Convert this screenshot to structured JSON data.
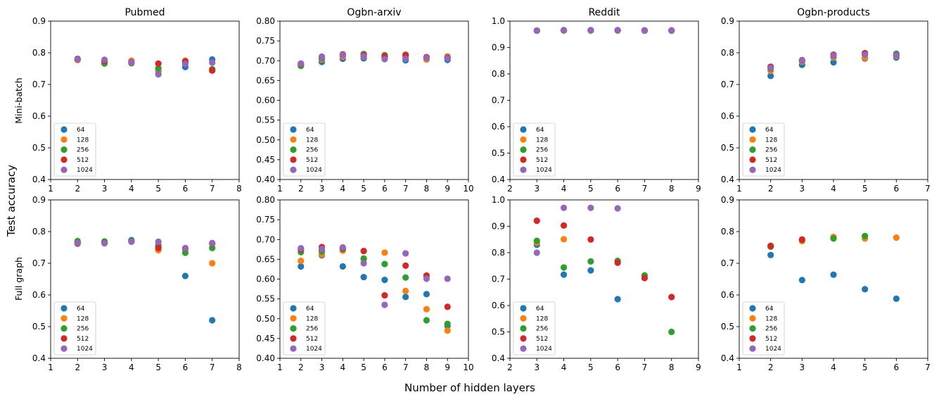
{
  "figure": {
    "ylabel": "Test accuracy",
    "xlabel": "Number of hidden layers",
    "row_labels": [
      "Mini-batch",
      "Full graph"
    ],
    "colors": {
      "64": "#1f77b4",
      "128": "#ff7f0e",
      "256": "#2ca02c",
      "512": "#d62728",
      "1024": "#9467bd"
    },
    "legend_position": "lower-left"
  },
  "chart_data": [
    {
      "type": "scatter",
      "title": "Pubmed",
      "row": "Mini-batch",
      "xlim": [
        1,
        8
      ],
      "xticks": [
        1,
        2,
        3,
        4,
        5,
        6,
        7,
        8
      ],
      "ylim": [
        0.4,
        0.9
      ],
      "yticks": [
        "0.4",
        "0.5",
        "0.6",
        "0.7",
        "0.8",
        "0.9"
      ],
      "x": [
        2,
        3,
        4,
        5,
        6,
        7
      ],
      "series": [
        {
          "name": "64",
          "values": [
            0.781,
            0.776,
            0.768,
            0.742,
            0.755,
            0.779
          ]
        },
        {
          "name": "128",
          "values": [
            0.777,
            0.77,
            0.775,
            0.745,
            0.775,
            0.748
          ]
        },
        {
          "name": "256",
          "values": [
            0.779,
            0.766,
            0.767,
            0.751,
            0.768,
            0.748
          ]
        },
        {
          "name": "512",
          "values": [
            0.78,
            0.774,
            0.771,
            0.766,
            0.773,
            0.744
          ]
        },
        {
          "name": "1024",
          "values": [
            0.779,
            0.778,
            0.77,
            0.732,
            0.765,
            0.769
          ]
        }
      ]
    },
    {
      "type": "scatter",
      "title": "Ogbn-arxiv",
      "row": "Mini-batch",
      "xlim": [
        1,
        10
      ],
      "xticks": [
        1,
        2,
        3,
        4,
        5,
        6,
        7,
        8,
        9,
        10
      ],
      "ylim": [
        0.4,
        0.8
      ],
      "yticks": [
        "0.40",
        "0.45",
        "0.50",
        "0.55",
        "0.60",
        "0.65",
        "0.70",
        "0.75",
        "0.80"
      ],
      "x": [
        2,
        3,
        4,
        5,
        6,
        7,
        8,
        9
      ],
      "series": [
        {
          "name": "64",
          "values": [
            0.69,
            0.697,
            0.705,
            0.706,
            0.705,
            0.701,
            0.707,
            0.702
          ]
        },
        {
          "name": "128",
          "values": [
            0.69,
            0.703,
            0.71,
            0.71,
            0.71,
            0.712,
            0.703,
            0.711
          ]
        },
        {
          "name": "256",
          "values": [
            0.687,
            0.706,
            0.714,
            0.717,
            0.714,
            0.712,
            0.708,
            0.708
          ]
        },
        {
          "name": "512",
          "values": [
            0.692,
            0.71,
            0.716,
            0.714,
            0.711,
            0.715,
            0.709,
            0.707
          ]
        },
        {
          "name": "1024",
          "values": [
            0.693,
            0.709,
            0.714,
            0.711,
            0.704,
            0.705,
            0.707,
            0.706
          ]
        }
      ]
    },
    {
      "type": "scatter",
      "title": "Reddit",
      "row": "Mini-batch",
      "xlim": [
        2,
        9
      ],
      "xticks": [
        2,
        3,
        4,
        5,
        6,
        7,
        8,
        9
      ],
      "ylim": [
        0.4,
        1.0
      ],
      "yticks": [
        "0.4",
        "0.5",
        "0.6",
        "0.7",
        "0.8",
        "0.9",
        "1.0"
      ],
      "x": [
        3,
        4,
        5,
        6,
        7,
        8
      ],
      "series": [
        {
          "name": "64",
          "values": [
            0.964,
            0.965,
            0.965,
            0.965,
            0.964,
            0.964
          ]
        },
        {
          "name": "128",
          "values": [
            0.964,
            0.965,
            0.965,
            0.965,
            0.964,
            0.964
          ]
        },
        {
          "name": "256",
          "values": [
            0.964,
            0.965,
            0.965,
            0.965,
            0.964,
            0.964
          ]
        },
        {
          "name": "512",
          "values": [
            0.964,
            0.965,
            0.965,
            0.965,
            0.965,
            0.965
          ]
        },
        {
          "name": "1024",
          "values": [
            0.964,
            0.966,
            0.966,
            0.966,
            0.964,
            0.964
          ]
        }
      ]
    },
    {
      "type": "scatter",
      "title": "Ogbn-products",
      "row": "Mini-batch",
      "xlim": [
        1,
        7
      ],
      "xticks": [
        1,
        2,
        3,
        4,
        5,
        6,
        7
      ],
      "ylim": [
        0.4,
        0.9
      ],
      "yticks": [
        "0.4",
        "0.5",
        "0.6",
        "0.7",
        "0.8",
        "0.9"
      ],
      "x": [
        2,
        3,
        4,
        5,
        6
      ],
      "series": [
        {
          "name": "64",
          "values": [
            0.727,
            0.762,
            0.77,
            0.782,
            0.785
          ]
        },
        {
          "name": "128",
          "values": [
            0.743,
            0.772,
            0.785,
            0.784,
            0.79
          ]
        },
        {
          "name": "256",
          "values": [
            0.75,
            0.775,
            0.79,
            0.795,
            0.797
          ]
        },
        {
          "name": "512",
          "values": [
            0.756,
            0.777,
            0.794,
            0.799,
            0.793
          ]
        },
        {
          "name": "1024",
          "values": [
            0.752,
            0.776,
            0.791,
            0.794,
            0.792
          ]
        }
      ]
    },
    {
      "type": "scatter",
      "title": "",
      "row": "Full graph",
      "xlim": [
        1,
        8
      ],
      "xticks": [
        1,
        2,
        3,
        4,
        5,
        6,
        7,
        8
      ],
      "ylim": [
        0.4,
        0.9
      ],
      "yticks": [
        "0.4",
        "0.5",
        "0.6",
        "0.7",
        "0.8",
        "0.9"
      ],
      "x": [
        2,
        3,
        4,
        5,
        6,
        7
      ],
      "series": [
        {
          "name": "64",
          "values": [
            0.767,
            0.765,
            0.773,
            0.757,
            0.66,
            0.52
          ]
        },
        {
          "name": "128",
          "values": [
            0.765,
            0.766,
            0.77,
            0.741,
            0.744,
            0.7
          ]
        },
        {
          "name": "256",
          "values": [
            0.77,
            0.769,
            0.771,
            0.752,
            0.733,
            0.748
          ]
        },
        {
          "name": "512",
          "values": [
            0.762,
            0.764,
            0.768,
            0.748,
            0.747,
            0.762
          ]
        },
        {
          "name": "1024",
          "values": [
            0.764,
            0.763,
            0.768,
            0.768,
            0.748,
            0.764
          ]
        }
      ]
    },
    {
      "type": "scatter",
      "title": "",
      "row": "Full graph",
      "xlim": [
        1,
        10
      ],
      "xticks": [
        1,
        2,
        3,
        4,
        5,
        6,
        7,
        8,
        9,
        10
      ],
      "ylim": [
        0.4,
        0.8
      ],
      "yticks": [
        "0.40",
        "0.45",
        "0.50",
        "0.55",
        "0.60",
        "0.65",
        "0.70",
        "0.75",
        "0.80"
      ],
      "x": [
        2,
        3,
        4,
        5,
        6,
        7,
        8,
        9
      ],
      "series": [
        {
          "name": "64",
          "values": [
            0.632,
            0.66,
            0.632,
            0.605,
            0.598,
            0.555,
            0.562,
            0.482
          ]
        },
        {
          "name": "128",
          "values": [
            0.646,
            0.662,
            0.672,
            0.65,
            0.667,
            0.57,
            0.524,
            0.47
          ]
        },
        {
          "name": "256",
          "values": [
            0.668,
            0.67,
            0.676,
            0.652,
            0.638,
            0.604,
            0.496,
            0.487
          ]
        },
        {
          "name": "512",
          "values": [
            0.675,
            0.681,
            0.678,
            0.671,
            0.559,
            0.634,
            0.609,
            0.53
          ]
        },
        {
          "name": "1024",
          "values": [
            0.678,
            0.676,
            0.68,
            0.64,
            0.535,
            0.665,
            0.601,
            0.601
          ]
        }
      ]
    },
    {
      "type": "scatter",
      "title": "",
      "row": "Full graph",
      "xlim": [
        2,
        9
      ],
      "xticks": [
        2,
        3,
        4,
        5,
        6,
        7,
        8,
        9
      ],
      "ylim": [
        0.4,
        1.0
      ],
      "yticks": [
        "0.4",
        "0.5",
        "0.6",
        "0.7",
        "0.8",
        "0.9",
        "1.0"
      ],
      "x": [
        3,
        4,
        5,
        6,
        7,
        8
      ],
      "series": [
        {
          "name": "64",
          "values": [
            0.83,
            0.717,
            0.733,
            0.624,
            null,
            null
          ]
        },
        {
          "name": "128",
          "values": [
            0.838,
            0.851,
            null,
            null,
            null,
            null
          ]
        },
        {
          "name": "256",
          "values": [
            0.845,
            0.744,
            0.767,
            0.769,
            0.714,
            0.5
          ]
        },
        {
          "name": "512",
          "values": [
            0.921,
            0.903,
            0.85,
            0.762,
            0.704,
            0.632
          ]
        },
        {
          "name": "1024",
          "values": [
            0.8,
            0.97,
            0.97,
            0.968,
            null,
            null
          ]
        }
      ]
    },
    {
      "type": "scatter",
      "title": "",
      "row": "Full graph",
      "xlim": [
        1,
        7
      ],
      "xticks": [
        1,
        2,
        3,
        4,
        5,
        6,
        7
      ],
      "ylim": [
        0.4,
        0.9
      ],
      "yticks": [
        "0.4",
        "0.5",
        "0.6",
        "0.7",
        "0.8",
        "0.9"
      ],
      "x": [
        2,
        3,
        4,
        5,
        6
      ],
      "series": [
        {
          "name": "64",
          "values": [
            0.726,
            0.647,
            0.664,
            0.618,
            0.588
          ]
        },
        {
          "name": "128",
          "values": [
            0.752,
            0.77,
            0.783,
            0.778,
            0.781
          ]
        },
        {
          "name": "256",
          "values": [
            0.753,
            0.774,
            0.778,
            0.786,
            null
          ]
        },
        {
          "name": "512",
          "values": [
            0.755,
            0.775,
            null,
            null,
            null
          ]
        },
        {
          "name": "1024",
          "values": [
            null,
            null,
            null,
            null,
            null
          ]
        }
      ]
    }
  ]
}
